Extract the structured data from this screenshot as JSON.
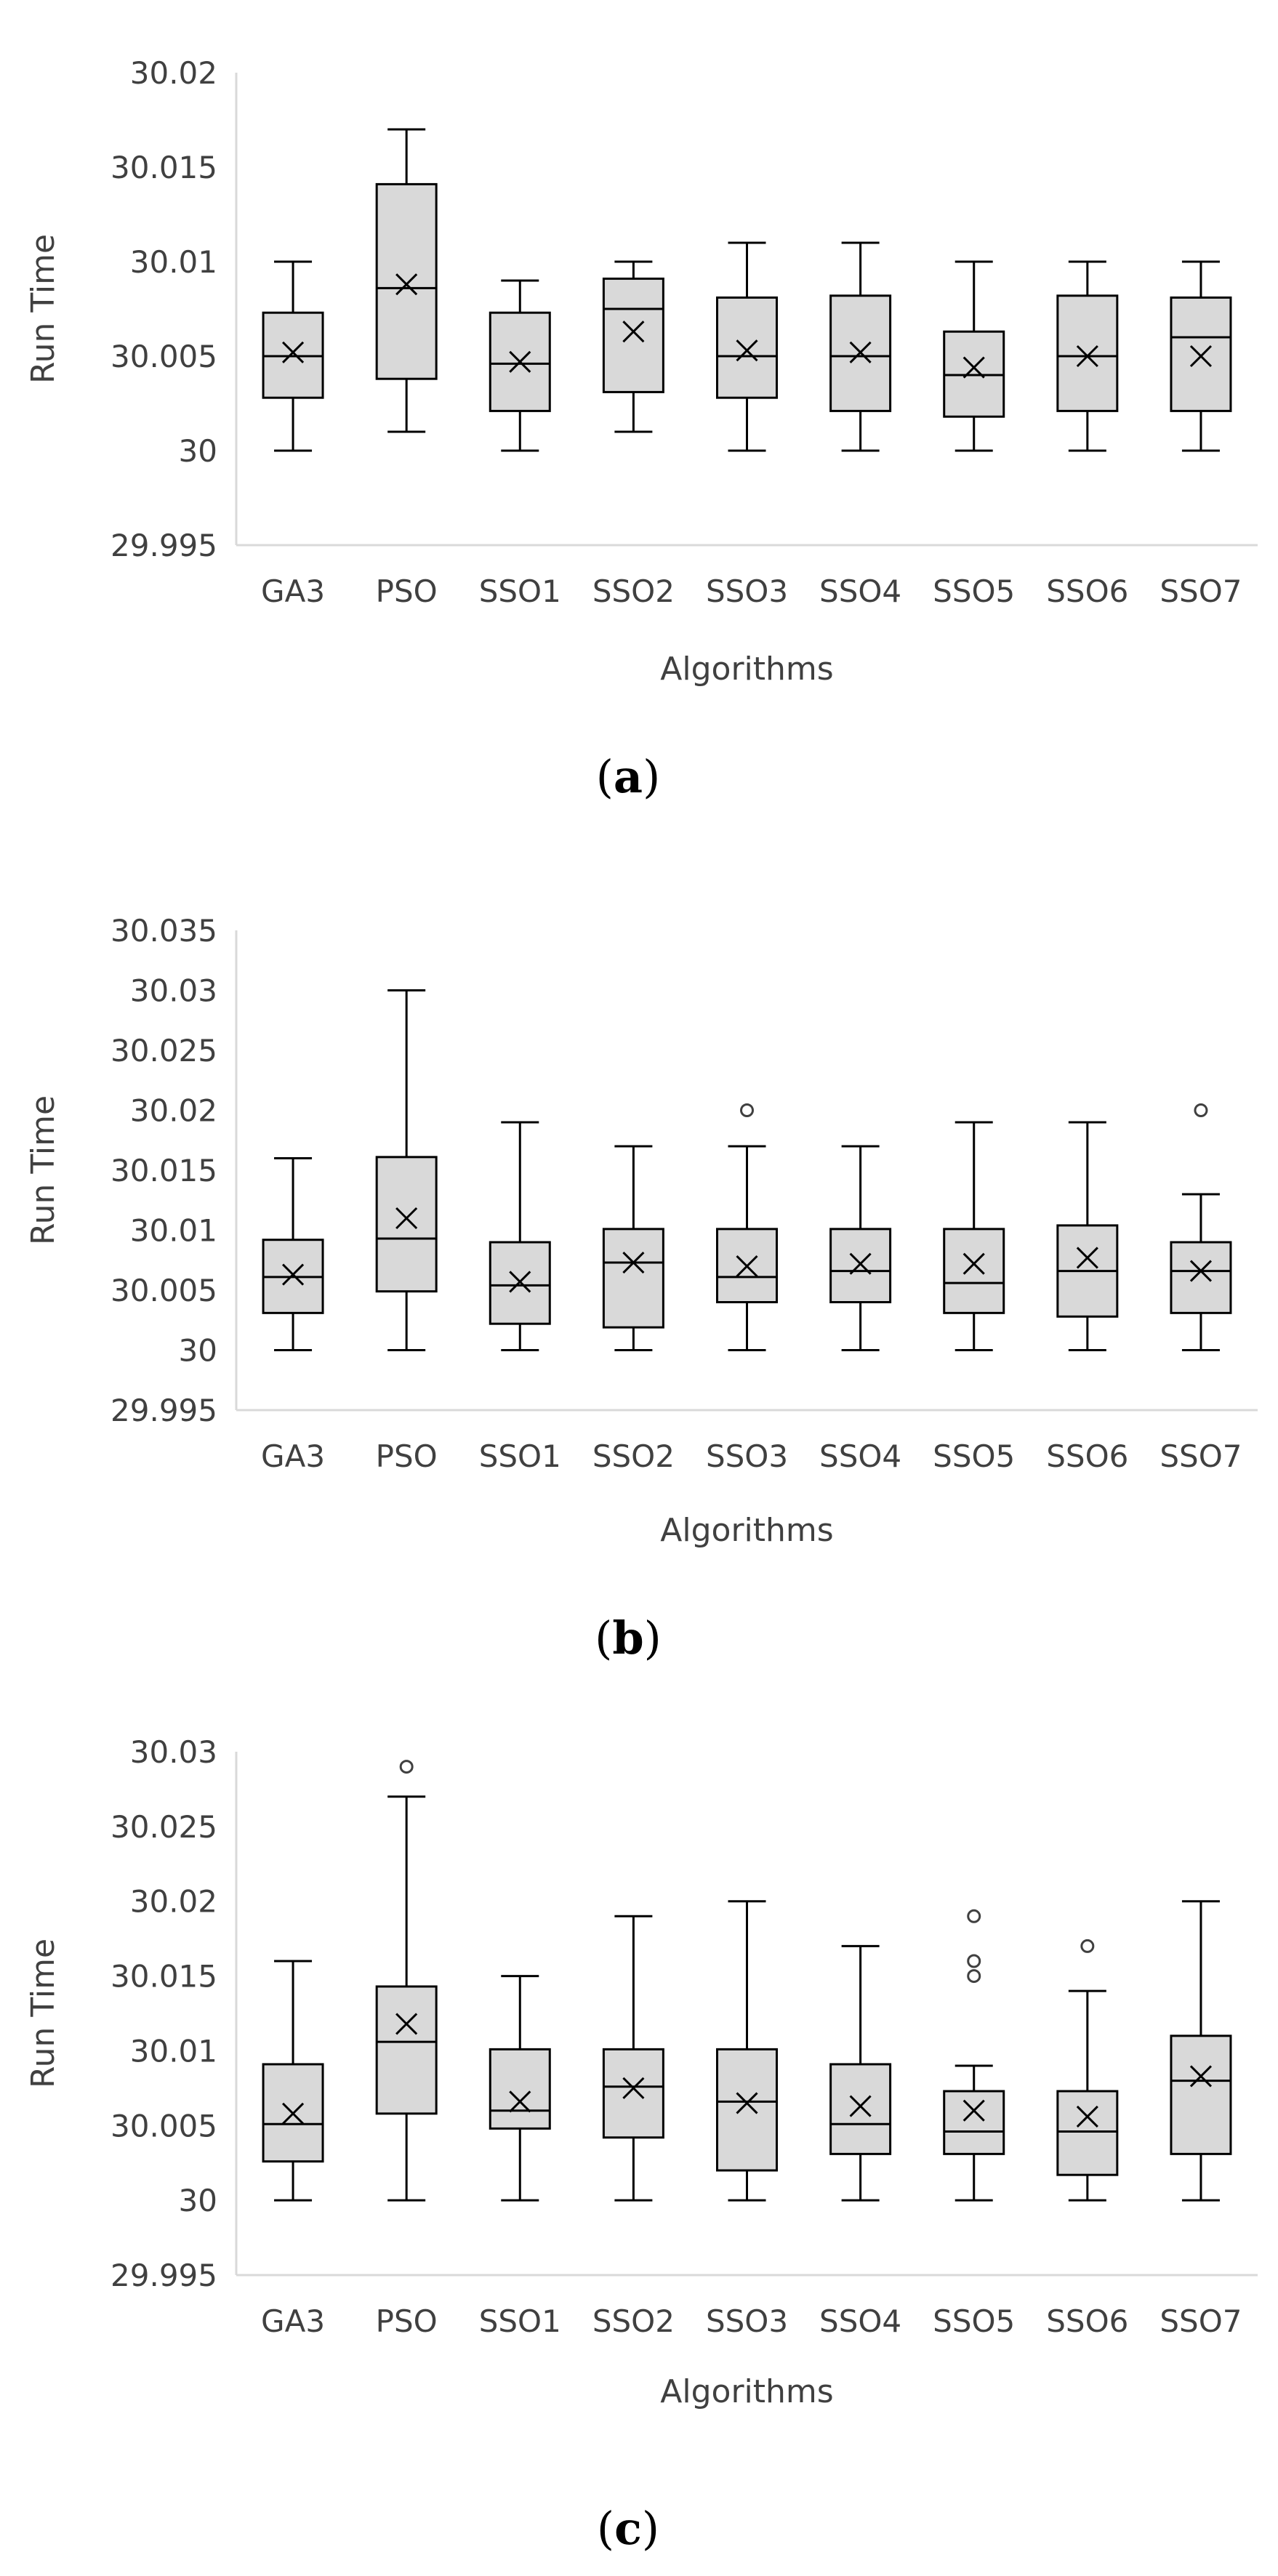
{
  "chart_data": [
    {
      "type": "box",
      "panel_label": "a",
      "xlabel": "Algorithms",
      "ylabel": "Run Time",
      "ylim": [
        29.995,
        30.02
      ],
      "y_ticks": [
        "29.995",
        "30",
        "30.005",
        "30.01",
        "30.015",
        "30.02"
      ],
      "categories": [
        "GA3",
        "PSO",
        "SSO1",
        "SSO2",
        "SSO3",
        "SSO4",
        "SSO5",
        "SSO6",
        "SSO7"
      ],
      "boxes": [
        {
          "min": 30.0,
          "q1": 30.0028,
          "median": 30.005,
          "q3": 30.0073,
          "max": 30.01,
          "mean": 30.0052,
          "outliers": []
        },
        {
          "min": 30.001,
          "q1": 30.0038,
          "median": 30.0086,
          "q3": 30.0141,
          "max": 30.017,
          "mean": 30.0088,
          "outliers": []
        },
        {
          "min": 30.0,
          "q1": 30.0021,
          "median": 30.0046,
          "q3": 30.0073,
          "max": 30.009,
          "mean": 30.0047,
          "outliers": []
        },
        {
          "min": 30.001,
          "q1": 30.0031,
          "median": 30.0075,
          "q3": 30.0091,
          "max": 30.01,
          "mean": 30.0063,
          "outliers": []
        },
        {
          "min": 30.0,
          "q1": 30.0028,
          "median": 30.005,
          "q3": 30.0081,
          "max": 30.011,
          "mean": 30.0053,
          "outliers": []
        },
        {
          "min": 30.0,
          "q1": 30.0021,
          "median": 30.005,
          "q3": 30.0082,
          "max": 30.011,
          "mean": 30.0052,
          "outliers": []
        },
        {
          "min": 30.0,
          "q1": 30.0018,
          "median": 30.004,
          "q3": 30.0063,
          "max": 30.01,
          "mean": 30.0044,
          "outliers": []
        },
        {
          "min": 30.0,
          "q1": 30.0021,
          "median": 30.005,
          "q3": 30.0082,
          "max": 30.01,
          "mean": 30.005,
          "outliers": []
        },
        {
          "min": 30.0,
          "q1": 30.0021,
          "median": 30.006,
          "q3": 30.0081,
          "max": 30.01,
          "mean": 30.005,
          "outliers": []
        }
      ]
    },
    {
      "type": "box",
      "panel_label": "b",
      "xlabel": "Algorithms",
      "ylabel": "Run Time",
      "ylim": [
        29.995,
        30.035
      ],
      "y_ticks": [
        "29.995",
        "30",
        "30.005",
        "30.01",
        "30.015",
        "30.02",
        "30.025",
        "30.03",
        "30.035"
      ],
      "categories": [
        "GA3",
        "PSO",
        "SSO1",
        "SSO2",
        "SSO3",
        "SSO4",
        "SSO5",
        "SSO6",
        "SSO7"
      ],
      "boxes": [
        {
          "min": 30.0,
          "q1": 30.0031,
          "median": 30.0061,
          "q3": 30.0092,
          "max": 30.016,
          "mean": 30.0063,
          "outliers": []
        },
        {
          "min": 30.0,
          "q1": 30.0049,
          "median": 30.0093,
          "q3": 30.0161,
          "max": 30.03,
          "mean": 30.011,
          "outliers": []
        },
        {
          "min": 30.0,
          "q1": 30.0022,
          "median": 30.0054,
          "q3": 30.009,
          "max": 30.019,
          "mean": 30.0057,
          "outliers": []
        },
        {
          "min": 30.0,
          "q1": 30.0019,
          "median": 30.0073,
          "q3": 30.0101,
          "max": 30.017,
          "mean": 30.0073,
          "outliers": []
        },
        {
          "min": 30.0,
          "q1": 30.004,
          "median": 30.0061,
          "q3": 30.0101,
          "max": 30.017,
          "mean": 30.007,
          "outliers": [
            30.02
          ]
        },
        {
          "min": 30.0,
          "q1": 30.004,
          "median": 30.0066,
          "q3": 30.0101,
          "max": 30.017,
          "mean": 30.0072,
          "outliers": []
        },
        {
          "min": 30.0,
          "q1": 30.0031,
          "median": 30.0056,
          "q3": 30.0101,
          "max": 30.019,
          "mean": 30.0072,
          "outliers": []
        },
        {
          "min": 30.0,
          "q1": 30.0028,
          "median": 30.0066,
          "q3": 30.0104,
          "max": 30.019,
          "mean": 30.0077,
          "outliers": []
        },
        {
          "min": 30.0,
          "q1": 30.0031,
          "median": 30.0066,
          "q3": 30.009,
          "max": 30.013,
          "mean": 30.0066,
          "outliers": [
            30.02
          ]
        }
      ]
    },
    {
      "type": "box",
      "panel_label": "c",
      "xlabel": "Algorithms",
      "ylabel": "Run Time",
      "ylim": [
        29.995,
        30.03
      ],
      "y_ticks": [
        "29.995",
        "30",
        "30.005",
        "30.01",
        "30.015",
        "30.02",
        "30.025",
        "30.03"
      ],
      "categories": [
        "GA3",
        "PSO",
        "SSO1",
        "SSO2",
        "SSO3",
        "SSO4",
        "SSO5",
        "SSO6",
        "SSO7"
      ],
      "boxes": [
        {
          "min": 30.0,
          "q1": 30.0026,
          "median": 30.0051,
          "q3": 30.0091,
          "max": 30.016,
          "mean": 30.0058,
          "outliers": []
        },
        {
          "min": 30.0,
          "q1": 30.0058,
          "median": 30.0106,
          "q3": 30.0143,
          "max": 30.027,
          "mean": 30.0118,
          "outliers": [
            30.029
          ]
        },
        {
          "min": 30.0,
          "q1": 30.0048,
          "median": 30.006,
          "q3": 30.0101,
          "max": 30.015,
          "mean": 30.0066,
          "outliers": []
        },
        {
          "min": 30.0,
          "q1": 30.0042,
          "median": 30.0076,
          "q3": 30.0101,
          "max": 30.019,
          "mean": 30.0075,
          "outliers": []
        },
        {
          "min": 30.0,
          "q1": 30.002,
          "median": 30.0066,
          "q3": 30.0101,
          "max": 30.02,
          "mean": 30.0065,
          "outliers": []
        },
        {
          "min": 30.0,
          "q1": 30.0031,
          "median": 30.0051,
          "q3": 30.0091,
          "max": 30.017,
          "mean": 30.0063,
          "outliers": []
        },
        {
          "min": 30.0,
          "q1": 30.0031,
          "median": 30.0046,
          "q3": 30.0073,
          "max": 30.009,
          "mean": 30.006,
          "outliers": [
            30.015,
            30.016,
            30.019
          ]
        },
        {
          "min": 30.0,
          "q1": 30.0017,
          "median": 30.0046,
          "q3": 30.0073,
          "max": 30.014,
          "mean": 30.0056,
          "outliers": [
            30.017
          ]
        },
        {
          "min": 30.0,
          "q1": 30.0031,
          "median": 30.008,
          "q3": 30.011,
          "max": 30.02,
          "mean": 30.0083,
          "outliers": []
        }
      ]
    }
  ],
  "style": {
    "box_fill": "#d9d9d9",
    "box_stroke": "#000000",
    "axis_line": "#d9d9d9",
    "label_color": "#404040"
  }
}
